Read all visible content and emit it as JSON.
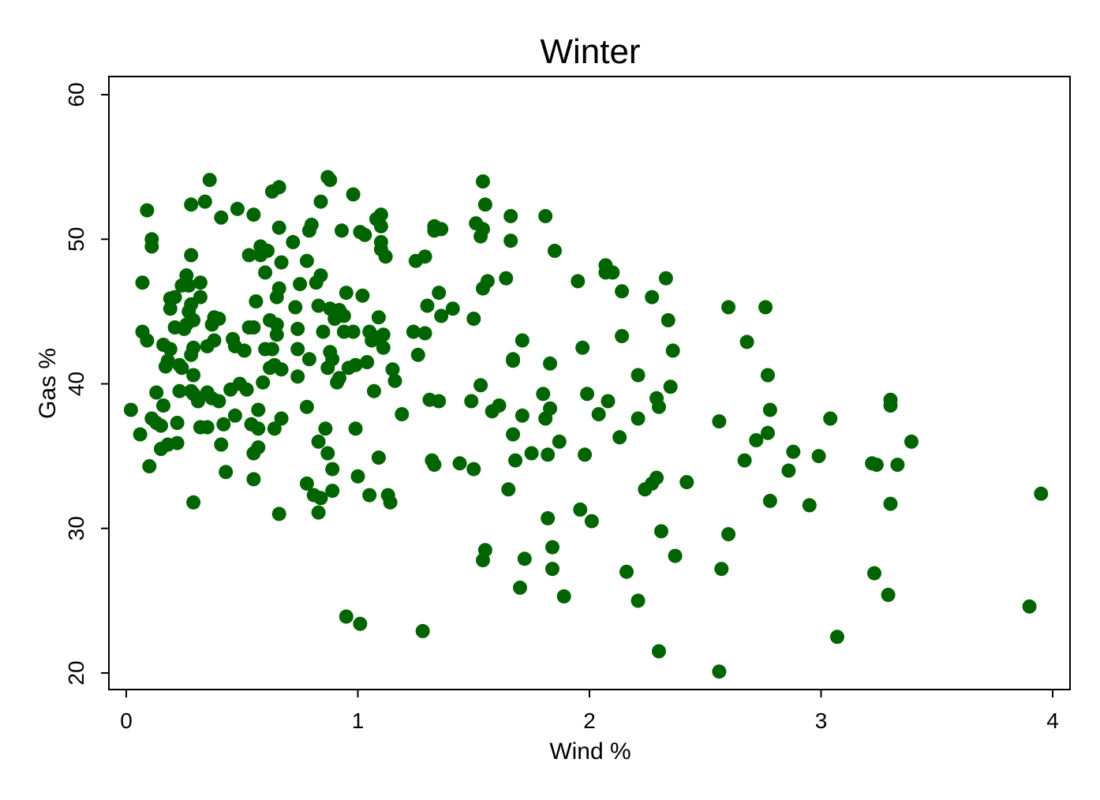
{
  "chart_data": {
    "type": "scatter",
    "title": "Winter",
    "xlabel": "Wind %",
    "ylabel": "Gas %",
    "xlim": [
      0,
      4
    ],
    "ylim": [
      20,
      60
    ],
    "xticks": [
      0,
      1,
      2,
      3,
      4
    ],
    "yticks": [
      20,
      30,
      40,
      50,
      60
    ],
    "grid": false,
    "legend": "none",
    "marker_color": "#006400",
    "points": [
      [
        0.02,
        38.2
      ],
      [
        0.06,
        36.5
      ],
      [
        0.07,
        47.0
      ],
      [
        0.07,
        43.6
      ],
      [
        0.09,
        43.0
      ],
      [
        0.09,
        52.0
      ],
      [
        0.1,
        34.3
      ],
      [
        0.11,
        50.0
      ],
      [
        0.11,
        49.5
      ],
      [
        0.11,
        37.6
      ],
      [
        0.13,
        39.4
      ],
      [
        0.13,
        37.3
      ],
      [
        0.15,
        37.1
      ],
      [
        0.15,
        35.5
      ],
      [
        0.16,
        42.7
      ],
      [
        0.16,
        38.5
      ],
      [
        0.17,
        41.2
      ],
      [
        0.18,
        35.8
      ],
      [
        0.18,
        41.6
      ],
      [
        0.19,
        45.9
      ],
      [
        0.19,
        45.2
      ],
      [
        0.19,
        42.4
      ],
      [
        0.21,
        43.9
      ],
      [
        0.21,
        46.0
      ],
      [
        0.22,
        35.9
      ],
      [
        0.22,
        37.3
      ],
      [
        0.23,
        39.5
      ],
      [
        0.23,
        41.3
      ],
      [
        0.24,
        46.8
      ],
      [
        0.24,
        41.1
      ],
      [
        0.25,
        43.8
      ],
      [
        0.26,
        47.5
      ],
      [
        0.26,
        44.1
      ],
      [
        0.27,
        46.8
      ],
      [
        0.27,
        45.0
      ],
      [
        0.28,
        48.9
      ],
      [
        0.28,
        45.5
      ],
      [
        0.28,
        39.5
      ],
      [
        0.29,
        44.4
      ],
      [
        0.29,
        42.5
      ],
      [
        0.28,
        42.0
      ],
      [
        0.28,
        52.4
      ],
      [
        0.29,
        39.3
      ],
      [
        0.29,
        40.6
      ],
      [
        0.29,
        31.8
      ],
      [
        0.31,
        38.8
      ],
      [
        0.32,
        47.0
      ],
      [
        0.32,
        46.0
      ],
      [
        0.32,
        37.0
      ],
      [
        0.34,
        52.6
      ],
      [
        0.35,
        42.6
      ],
      [
        0.35,
        39.4
      ],
      [
        0.35,
        37.0
      ],
      [
        0.36,
        54.1
      ],
      [
        0.37,
        39.0
      ],
      [
        0.37,
        44.1
      ],
      [
        0.38,
        43.0
      ],
      [
        0.38,
        44.6
      ],
      [
        0.4,
        38.8
      ],
      [
        0.4,
        44.5
      ],
      [
        0.41,
        51.5
      ],
      [
        0.41,
        35.8
      ],
      [
        0.42,
        37.2
      ],
      [
        0.43,
        33.9
      ],
      [
        0.45,
        39.6
      ],
      [
        0.46,
        43.1
      ],
      [
        0.47,
        37.8
      ],
      [
        0.47,
        42.6
      ],
      [
        0.48,
        52.1
      ],
      [
        0.49,
        40.0
      ],
      [
        0.51,
        42.3
      ],
      [
        0.52,
        39.6
      ],
      [
        0.53,
        48.9
      ],
      [
        0.53,
        43.9
      ],
      [
        0.54,
        37.2
      ],
      [
        0.55,
        51.7
      ],
      [
        0.55,
        43.9
      ],
      [
        0.55,
        35.2
      ],
      [
        0.55,
        33.4
      ],
      [
        0.56,
        45.7
      ],
      [
        0.57,
        36.9
      ],
      [
        0.57,
        35.6
      ],
      [
        0.57,
        38.2
      ],
      [
        0.58,
        48.9
      ],
      [
        0.58,
        49.5
      ],
      [
        0.59,
        40.1
      ],
      [
        0.6,
        47.7
      ],
      [
        0.6,
        42.4
      ],
      [
        0.61,
        49.2
      ],
      [
        0.62,
        44.4
      ],
      [
        0.62,
        41.1
      ],
      [
        0.63,
        42.4
      ],
      [
        0.63,
        53.3
      ],
      [
        0.64,
        36.9
      ],
      [
        0.64,
        41.3
      ],
      [
        0.65,
        44.1
      ],
      [
        0.65,
        46.0
      ],
      [
        0.65,
        43.4
      ],
      [
        0.66,
        53.6
      ],
      [
        0.66,
        50.8
      ],
      [
        0.66,
        46.6
      ],
      [
        0.67,
        48.4
      ],
      [
        0.67,
        41.0
      ],
      [
        0.67,
        37.6
      ],
      [
        0.66,
        31.0
      ],
      [
        0.72,
        49.8
      ],
      [
        0.73,
        45.3
      ],
      [
        0.74,
        43.8
      ],
      [
        0.74,
        42.4
      ],
      [
        0.74,
        40.5
      ],
      [
        0.75,
        46.9
      ],
      [
        0.78,
        33.1
      ],
      [
        0.78,
        48.5
      ],
      [
        0.78,
        38.4
      ],
      [
        0.79,
        50.6
      ],
      [
        0.79,
        41.7
      ],
      [
        0.8,
        51.0
      ],
      [
        0.81,
        32.3
      ],
      [
        0.82,
        47.0
      ],
      [
        0.83,
        36.0
      ],
      [
        0.83,
        45.4
      ],
      [
        0.83,
        31.1
      ],
      [
        0.84,
        32.1
      ],
      [
        0.84,
        47.5
      ],
      [
        0.84,
        52.6
      ],
      [
        0.85,
        43.6
      ],
      [
        0.86,
        36.9
      ],
      [
        0.87,
        54.3
      ],
      [
        0.87,
        41.1
      ],
      [
        0.87,
        35.2
      ],
      [
        0.88,
        54.1
      ],
      [
        0.88,
        42.2
      ],
      [
        0.88,
        45.2
      ],
      [
        0.89,
        41.7
      ],
      [
        0.89,
        34.1
      ],
      [
        0.89,
        32.6
      ],
      [
        0.9,
        44.5
      ],
      [
        0.9,
        44.9
      ],
      [
        0.91,
        40.1
      ],
      [
        0.92,
        40.4
      ],
      [
        0.92,
        45.1
      ],
      [
        0.93,
        50.6
      ],
      [
        0.94,
        43.6
      ],
      [
        0.94,
        44.7
      ],
      [
        0.95,
        46.3
      ],
      [
        0.95,
        23.9
      ],
      [
        0.96,
        41.1
      ],
      [
        0.98,
        53.1
      ],
      [
        0.98,
        43.6
      ],
      [
        0.99,
        41.3
      ],
      [
        0.99,
        36.9
      ],
      [
        1.0,
        33.6
      ],
      [
        1.01,
        50.5
      ],
      [
        1.01,
        23.4
      ],
      [
        1.02,
        46.1
      ],
      [
        1.03,
        50.3
      ],
      [
        1.04,
        41.5
      ],
      [
        1.05,
        32.3
      ],
      [
        1.05,
        43.6
      ],
      [
        1.06,
        43.0
      ],
      [
        1.07,
        39.5
      ],
      [
        1.08,
        51.4
      ],
      [
        1.08,
        43.2
      ],
      [
        1.09,
        44.6
      ],
      [
        1.09,
        34.9
      ],
      [
        1.1,
        51.7
      ],
      [
        1.1,
        50.9
      ],
      [
        1.1,
        49.8
      ],
      [
        1.1,
        49.3
      ],
      [
        1.11,
        43.4
      ],
      [
        1.11,
        42.5
      ],
      [
        1.12,
        48.8
      ],
      [
        1.13,
        32.3
      ],
      [
        1.14,
        31.8
      ],
      [
        1.15,
        41.0
      ],
      [
        1.16,
        40.2
      ],
      [
        1.19,
        37.9
      ],
      [
        1.24,
        43.6
      ],
      [
        1.25,
        48.5
      ],
      [
        1.26,
        42.0
      ],
      [
        1.28,
        22.9
      ],
      [
        1.29,
        43.5
      ],
      [
        1.29,
        48.8
      ],
      [
        1.3,
        45.4
      ],
      [
        1.31,
        38.9
      ],
      [
        1.32,
        34.7
      ],
      [
        1.33,
        34.4
      ],
      [
        1.33,
        50.6
      ],
      [
        1.33,
        50.9
      ],
      [
        1.35,
        38.8
      ],
      [
        1.35,
        46.3
      ],
      [
        1.36,
        50.7
      ],
      [
        1.36,
        44.7
      ],
      [
        1.41,
        45.2
      ],
      [
        1.44,
        34.5
      ],
      [
        1.49,
        38.8
      ],
      [
        1.5,
        44.5
      ],
      [
        1.5,
        34.1
      ],
      [
        1.51,
        51.1
      ],
      [
        1.53,
        50.2
      ],
      [
        1.53,
        39.9
      ],
      [
        1.54,
        54.0
      ],
      [
        1.54,
        46.6
      ],
      [
        1.54,
        50.7
      ],
      [
        1.54,
        27.8
      ],
      [
        1.55,
        52.4
      ],
      [
        1.55,
        28.5
      ],
      [
        1.56,
        47.1
      ],
      [
        1.58,
        38.1
      ],
      [
        1.61,
        38.5
      ],
      [
        1.64,
        47.3
      ],
      [
        1.65,
        32.7
      ],
      [
        1.66,
        51.6
      ],
      [
        1.66,
        49.9
      ],
      [
        1.67,
        41.7
      ],
      [
        1.67,
        41.6
      ],
      [
        1.67,
        36.5
      ],
      [
        1.68,
        34.7
      ],
      [
        1.7,
        25.9
      ],
      [
        1.71,
        43.0
      ],
      [
        1.71,
        37.8
      ],
      [
        1.72,
        27.9
      ],
      [
        1.75,
        35.2
      ],
      [
        1.8,
        39.3
      ],
      [
        1.81,
        37.6
      ],
      [
        1.81,
        51.6
      ],
      [
        1.82,
        35.1
      ],
      [
        1.82,
        30.7
      ],
      [
        1.83,
        41.4
      ],
      [
        1.83,
        38.3
      ],
      [
        1.84,
        28.7
      ],
      [
        1.84,
        27.2
      ],
      [
        1.85,
        49.2
      ],
      [
        1.87,
        36.0
      ],
      [
        1.89,
        25.3
      ],
      [
        1.95,
        47.1
      ],
      [
        1.96,
        31.3
      ],
      [
        1.97,
        42.5
      ],
      [
        1.98,
        35.1
      ],
      [
        1.99,
        39.3
      ],
      [
        2.01,
        30.5
      ],
      [
        2.04,
        37.9
      ],
      [
        2.07,
        48.2
      ],
      [
        2.07,
        47.7
      ],
      [
        2.08,
        38.8
      ],
      [
        2.1,
        47.7
      ],
      [
        2.13,
        36.3
      ],
      [
        2.14,
        43.3
      ],
      [
        2.14,
        46.4
      ],
      [
        2.16,
        27.0
      ],
      [
        2.21,
        40.6
      ],
      [
        2.21,
        37.6
      ],
      [
        2.21,
        25.0
      ],
      [
        2.24,
        32.7
      ],
      [
        2.27,
        46.0
      ],
      [
        2.27,
        33.1
      ],
      [
        2.29,
        33.5
      ],
      [
        2.29,
        39.0
      ],
      [
        2.3,
        38.4
      ],
      [
        2.3,
        21.5
      ],
      [
        2.31,
        29.8
      ],
      [
        2.33,
        47.3
      ],
      [
        2.34,
        44.4
      ],
      [
        2.35,
        39.8
      ],
      [
        2.36,
        42.3
      ],
      [
        2.37,
        28.1
      ],
      [
        2.42,
        33.2
      ],
      [
        2.56,
        37.4
      ],
      [
        2.56,
        20.1
      ],
      [
        2.57,
        27.2
      ],
      [
        2.6,
        45.3
      ],
      [
        2.6,
        29.6
      ],
      [
        2.67,
        34.7
      ],
      [
        2.68,
        42.9
      ],
      [
        2.72,
        36.1
      ],
      [
        2.76,
        45.3
      ],
      [
        2.77,
        36.6
      ],
      [
        2.77,
        40.6
      ],
      [
        2.78,
        38.2
      ],
      [
        2.78,
        31.9
      ],
      [
        2.86,
        34.0
      ],
      [
        2.88,
        35.3
      ],
      [
        2.95,
        31.6
      ],
      [
        2.99,
        35.0
      ],
      [
        3.04,
        37.6
      ],
      [
        3.07,
        22.5
      ],
      [
        3.22,
        34.5
      ],
      [
        3.23,
        26.9
      ],
      [
        3.24,
        34.4
      ],
      [
        3.29,
        25.4
      ],
      [
        3.3,
        38.9
      ],
      [
        3.3,
        38.5
      ],
      [
        3.3,
        31.7
      ],
      [
        3.33,
        34.4
      ],
      [
        3.39,
        36.0
      ],
      [
        3.9,
        24.6
      ],
      [
        3.95,
        32.4
      ]
    ]
  }
}
